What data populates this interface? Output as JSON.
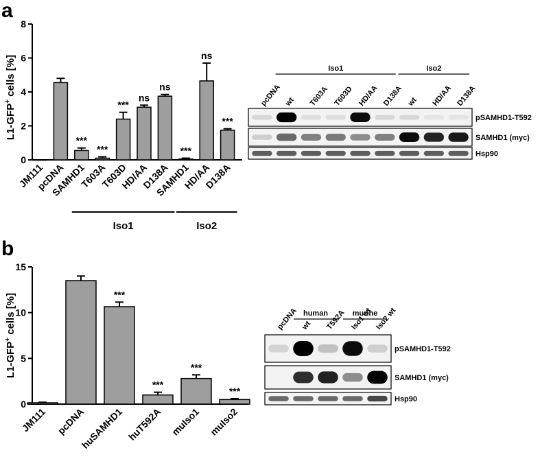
{
  "panels": {
    "a": {
      "letter": "a"
    },
    "b": {
      "letter": "b"
    }
  },
  "chart_data": [
    {
      "type": "bar",
      "panel": "a",
      "ylabel_main": "L1-GFP",
      "ylabel_sup": "+",
      "ylabel_tail": " cells [%]",
      "ylim": [
        0,
        8
      ],
      "yticks": [
        "0",
        "2",
        "4",
        "6",
        "8"
      ],
      "categories": [
        "JM111",
        "pcDNA",
        "SAMHD1",
        "T603A",
        "T603D",
        "HD/AA",
        "D138A",
        "SAMHD1",
        "HD/AA",
        "D138A"
      ],
      "values": [
        0,
        4.55,
        0.55,
        0.1,
        2.4,
        3.1,
        3.75,
        0.05,
        4.65,
        1.75
      ],
      "errors": [
        0,
        0.25,
        0.15,
        0.08,
        0.4,
        0.12,
        0.1,
        0.05,
        1.05,
        0.08
      ],
      "significance": [
        "",
        "",
        "***",
        "***",
        "***",
        "ns",
        "ns",
        "***",
        "ns",
        "***"
      ],
      "groups": [
        {
          "label": "Iso1",
          "from": 2,
          "to": 6
        },
        {
          "label": "Iso2",
          "from": 7,
          "to": 9
        }
      ],
      "bar_color": "#9e9e9e"
    },
    {
      "type": "bar",
      "panel": "b",
      "ylabel_main": "L1-GFP",
      "ylabel_sup": "+",
      "ylabel_tail": " cells [%]",
      "ylim": [
        0,
        15
      ],
      "yticks": [
        "0",
        "5",
        "10",
        "15"
      ],
      "categories": [
        "JM111",
        "pcDNA",
        "huSAMHD1",
        "huT592A",
        "muIso1",
        "muIso2"
      ],
      "values": [
        0.15,
        13.5,
        10.65,
        1.0,
        2.8,
        0.5
      ],
      "errors": [
        0.05,
        0.5,
        0.5,
        0.3,
        0.4,
        0.1
      ],
      "significance": [
        "",
        "",
        "***",
        "***",
        "***",
        "***"
      ],
      "bar_color": "#9e9e9e"
    }
  ],
  "blots": {
    "a": {
      "group_labels": [
        {
          "label": "Iso1"
        },
        {
          "label": "Iso2"
        }
      ],
      "lane_labels": [
        "pcDNA",
        "wt",
        "T603A",
        "T603D",
        "HD/AA",
        "D138A",
        "wt",
        "HD/AA",
        "D138A"
      ],
      "rows": [
        "pSAMHD1-T592",
        "SAMHD1 (myc)",
        "Hsp90"
      ],
      "intensities": [
        [
          0.08,
          1.0,
          0.06,
          0.06,
          0.95,
          0.08,
          0.08,
          0.03,
          0.03
        ],
        [
          0.12,
          0.55,
          0.45,
          0.48,
          0.4,
          0.45,
          0.95,
          0.85,
          0.9
        ],
        [
          0.6,
          0.6,
          0.6,
          0.6,
          0.6,
          0.6,
          0.6,
          0.6,
          0.6
        ]
      ]
    },
    "b": {
      "group_labels": [
        {
          "label": "human"
        },
        {
          "label": "murine"
        }
      ],
      "lane_labels": [
        "pcDNA",
        "wt",
        "T592A",
        "Iso1 wt",
        "Iso2 wt"
      ],
      "rows": [
        "pSAMHD1-T592",
        "SAMHD1 (myc)",
        "Hsp90"
      ],
      "intensities": [
        [
          0.1,
          1.0,
          0.18,
          0.95,
          0.12
        ],
        [
          0.0,
          0.8,
          0.85,
          0.4,
          1.0
        ],
        [
          0.55,
          0.55,
          0.55,
          0.55,
          0.7
        ]
      ]
    }
  }
}
